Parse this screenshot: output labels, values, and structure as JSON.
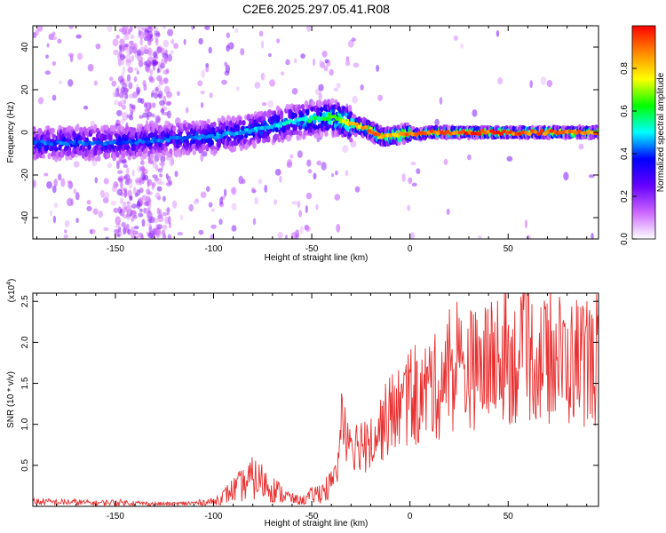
{
  "figure_title": "C2E6.2025.297.05.41.R08",
  "colors": {
    "snr_line": "#e83030",
    "axis": "#000000"
  },
  "chart_data": [
    {
      "type": "heatmap",
      "title": "C2E6.2025.297.05.41.R08",
      "xlabel": "Height of straight line (km)",
      "ylabel": "Frequency (Hz)",
      "xlim": [
        -192,
        96
      ],
      "ylim": [
        -50,
        50
      ],
      "x_ticks": [
        -150,
        -100,
        -50,
        0,
        50
      ],
      "y_ticks": [
        -40,
        -20,
        0,
        20,
        40
      ],
      "colorbar": {
        "label": "Normalized spectral amplitude",
        "range": [
          0,
          1
        ],
        "ticks": [
          "0.0",
          "0.2",
          "0.4",
          "0.6",
          "0.8"
        ],
        "colormap": [
          "#ffffff",
          "#cc66ff",
          "#6600ff",
          "#0000ff",
          "#00ffff",
          "#00ff00",
          "#ffff00",
          "#ff8800",
          "#ff0000"
        ]
      },
      "ridge": {
        "description": "main spectral trace (center frequency, Hz, vs height)",
        "x": [
          -192,
          -150,
          -120,
          -100,
          -80,
          -60,
          -50,
          -40,
          -35,
          -30,
          -20,
          -15,
          -10,
          -5,
          0,
          5,
          10,
          20,
          50,
          96
        ],
        "y": [
          -5,
          -5,
          -3,
          -2,
          1,
          5,
          6,
          7,
          6,
          4,
          1,
          -2,
          -2,
          -1,
          0,
          -1,
          0,
          0,
          0,
          0
        ],
        "peak_amplitude": [
          0.45,
          0.45,
          0.45,
          0.5,
          0.5,
          0.55,
          0.6,
          0.7,
          0.75,
          0.85,
          0.95,
          0.95,
          0.9,
          0.9,
          0.95,
          0.95,
          0.95,
          1.0,
          1.0,
          0.95
        ]
      }
    },
    {
      "type": "line",
      "xlabel": "Height of straight line (km)",
      "ylabel": "SNR (10 * v/v)",
      "y_multiplier_label": "(x10",
      "y_multiplier_exp": "4",
      "xlim": [
        -192,
        96
      ],
      "ylim": [
        0,
        26000
      ],
      "x_ticks": [
        -150,
        -100,
        -50,
        0,
        50
      ],
      "y_ticks": [
        5000,
        10000,
        15000,
        20000,
        25000
      ],
      "y_tick_labels": [
        "0.5",
        "1.0",
        "1.5",
        "2.0",
        "2.5"
      ],
      "series": [
        {
          "name": "SNR",
          "x": [
            -192,
            -180,
            -170,
            -160,
            -150,
            -140,
            -130,
            -120,
            -110,
            -100,
            -95,
            -90,
            -85,
            -80,
            -75,
            -70,
            -65,
            -60,
            -55,
            -50,
            -45,
            -40,
            -37,
            -35,
            -33,
            -30,
            -27,
            -25,
            -22,
            -20,
            -17,
            -15,
            -12,
            -10,
            -7,
            -5,
            -2,
            0,
            3,
            5,
            8,
            10,
            13,
            15,
            18,
            20,
            25,
            30,
            35,
            40,
            45,
            50,
            55,
            60,
            65,
            70,
            75,
            80,
            85,
            90,
            96
          ],
          "y": [
            600,
            500,
            500,
            400,
            500,
            400,
            300,
            300,
            400,
            600,
            1200,
            2000,
            2600,
            3400,
            3000,
            2200,
            1500,
            900,
            700,
            1300,
            1800,
            2500,
            4500,
            9000,
            10000,
            8500,
            7500,
            8000,
            7000,
            8500,
            9000,
            9500,
            10500,
            11000,
            12000,
            12000,
            12500,
            14000,
            12500,
            13000,
            14000,
            15000,
            14500,
            14500,
            16000,
            16000,
            16500,
            17000,
            16500,
            17500,
            17000,
            18000,
            17500,
            18500,
            18000,
            17500,
            18500,
            17000,
            18000,
            17500,
            17000
          ]
        }
      ]
    }
  ]
}
